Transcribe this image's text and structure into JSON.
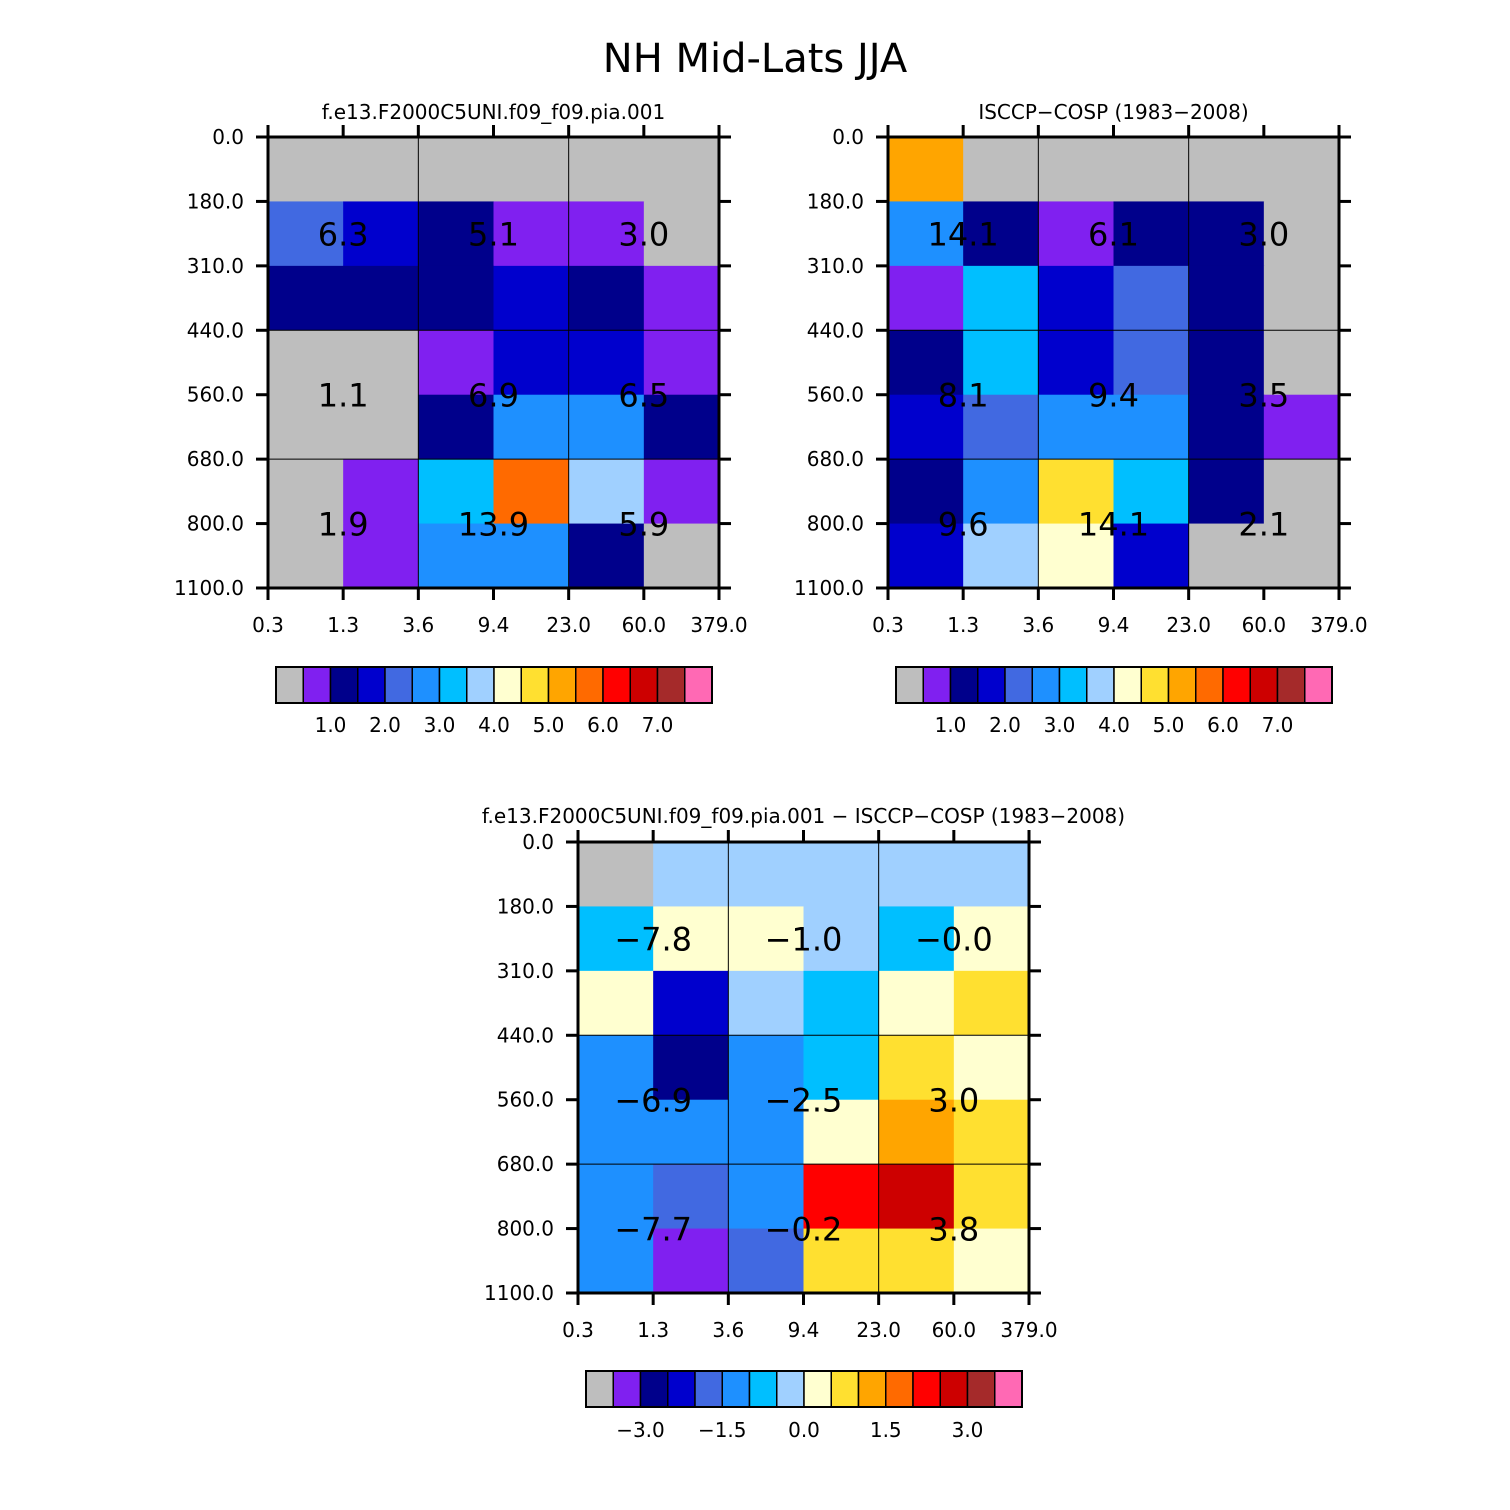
{
  "figure_title": "NH Mid-Lats JJA",
  "palette": [
    "#bebebe",
    "#8020f0",
    "#00008b",
    "#0000cd",
    "#4169e1",
    "#1e90ff",
    "#00bfff",
    "#a0d0ff",
    "#ffffd0",
    "#ffe030",
    "#ffa500",
    "#ff6a00",
    "#ff0000",
    "#cd0000",
    "#a52a2a",
    "#ff69b4"
  ],
  "chart_data": [
    {
      "type": "heatmap",
      "title": "f.e13.F2000C5UNI.f09_f09.pia.001",
      "x_ticks": [
        "0.3",
        "1.3",
        "3.6",
        "9.4",
        "23.0",
        "60.0",
        "379.0"
      ],
      "y_ticks": [
        "0.0",
        "180.0",
        "310.0",
        "440.0",
        "560.0",
        "680.0",
        "800.0",
        "1100.0"
      ],
      "cell_levels": [
        [
          0,
          0,
          0,
          0,
          0,
          0
        ],
        [
          4,
          3,
          2,
          1,
          1,
          0
        ],
        [
          2,
          2,
          2,
          3,
          2,
          1
        ],
        [
          0,
          0,
          1,
          3,
          3,
          1
        ],
        [
          0,
          0,
          2,
          5,
          5,
          2
        ],
        [
          0,
          1,
          6,
          11,
          7,
          1
        ],
        [
          0,
          1,
          5,
          5,
          2,
          0
        ]
      ],
      "group_labels": [
        {
          "text": "6.3",
          "col": 0,
          "row": 0
        },
        {
          "text": "5.1",
          "col": 1,
          "row": 0
        },
        {
          "text": "3.0",
          "col": 2,
          "row": 0
        },
        {
          "text": "1.1",
          "col": 0,
          "row": 1
        },
        {
          "text": "6.9",
          "col": 1,
          "row": 1
        },
        {
          "text": "6.5",
          "col": 2,
          "row": 1
        },
        {
          "text": "1.9",
          "col": 0,
          "row": 2
        },
        {
          "text": "13.9",
          "col": 1,
          "row": 2
        },
        {
          "text": "5.9",
          "col": 2,
          "row": 2
        }
      ],
      "colorbar_labels": [
        "1.0",
        "2.0",
        "3.0",
        "4.0",
        "5.0",
        "6.0",
        "7.0"
      ]
    },
    {
      "type": "heatmap",
      "title": "ISCCP-COSP (1983-2008)",
      "x_ticks": [
        "0.3",
        "1.3",
        "3.6",
        "9.4",
        "23.0",
        "60.0",
        "379.0"
      ],
      "y_ticks": [
        "0.0",
        "180.0",
        "310.0",
        "440.0",
        "560.0",
        "680.0",
        "800.0",
        "1100.0"
      ],
      "cell_levels": [
        [
          10,
          0,
          0,
          0,
          0,
          0
        ],
        [
          5,
          2,
          1,
          2,
          2,
          0
        ],
        [
          1,
          6,
          3,
          4,
          2,
          0
        ],
        [
          2,
          6,
          3,
          4,
          2,
          0
        ],
        [
          3,
          4,
          5,
          5,
          2,
          1
        ],
        [
          2,
          5,
          9,
          6,
          2,
          0
        ],
        [
          3,
          7,
          8,
          3,
          0,
          0
        ]
      ],
      "group_labels": [
        {
          "text": "14.1",
          "col": 0,
          "row": 0
        },
        {
          "text": "6.1",
          "col": 1,
          "row": 0
        },
        {
          "text": "3.0",
          "col": 2,
          "row": 0
        },
        {
          "text": "8.1",
          "col": 0,
          "row": 1
        },
        {
          "text": "9.4",
          "col": 1,
          "row": 1
        },
        {
          "text": "3.5",
          "col": 2,
          "row": 1
        },
        {
          "text": "9.6",
          "col": 0,
          "row": 2
        },
        {
          "text": "14.1",
          "col": 1,
          "row": 2
        },
        {
          "text": "2.1",
          "col": 2,
          "row": 2
        }
      ],
      "colorbar_labels": [
        "1.0",
        "2.0",
        "3.0",
        "4.0",
        "5.0",
        "6.0",
        "7.0"
      ]
    },
    {
      "type": "heatmap",
      "title": "f.e13.F2000C5UNI.f09_f09.pia.001 - ISCCP-COSP (1983-2008)",
      "x_ticks": [
        "0.3",
        "1.3",
        "3.6",
        "9.4",
        "23.0",
        "60.0",
        "379.0"
      ],
      "y_ticks": [
        "0.0",
        "180.0",
        "310.0",
        "440.0",
        "560.0",
        "680.0",
        "800.0",
        "1100.0"
      ],
      "cell_levels": [
        [
          0,
          7,
          7,
          7,
          7,
          7
        ],
        [
          6,
          8,
          8,
          7,
          6,
          8
        ],
        [
          8,
          3,
          7,
          6,
          8,
          9
        ],
        [
          5,
          2,
          5,
          6,
          9,
          8
        ],
        [
          5,
          5,
          5,
          8,
          10,
          9
        ],
        [
          5,
          4,
          5,
          12,
          13,
          9
        ],
        [
          5,
          1,
          4,
          9,
          9,
          8
        ]
      ],
      "group_labels": [
        {
          "text": "-7.8",
          "col": 0,
          "row": 0
        },
        {
          "text": "-1.0",
          "col": 1,
          "row": 0
        },
        {
          "text": "-0.0",
          "col": 2,
          "row": 0
        },
        {
          "text": "-6.9",
          "col": 0,
          "row": 1
        },
        {
          "text": "-2.5",
          "col": 1,
          "row": 1
        },
        {
          "text": "3.0",
          "col": 2,
          "row": 1
        },
        {
          "text": "-7.7",
          "col": 0,
          "row": 2
        },
        {
          "text": "-0.2",
          "col": 1,
          "row": 2
        },
        {
          "text": "3.8",
          "col": 2,
          "row": 2
        }
      ],
      "colorbar_labels": [
        "-3.0",
        "-1.5",
        "0.0",
        "1.5",
        "3.0"
      ]
    }
  ]
}
